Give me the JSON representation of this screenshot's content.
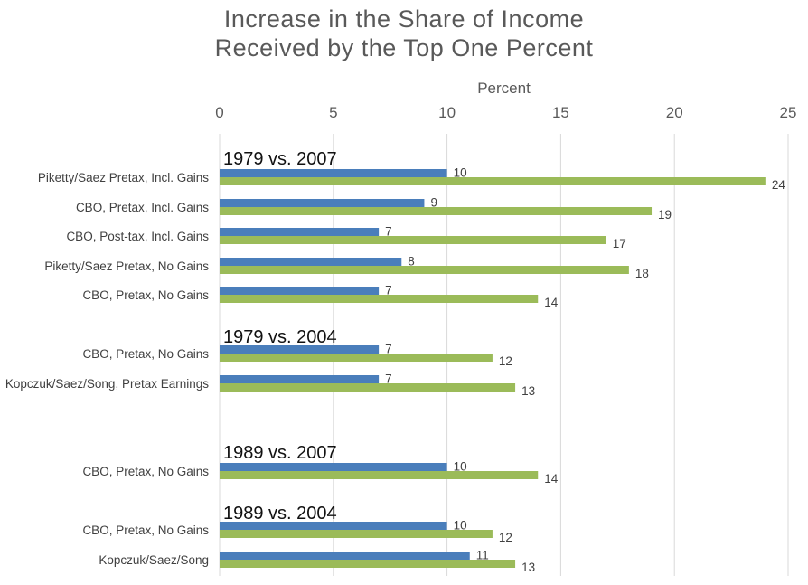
{
  "chart_data": {
    "type": "bar",
    "orientation": "horizontal",
    "title_lines": [
      "Increase in the Share of Income",
      "Received by the Top One Percent"
    ],
    "xlabel": "Percent",
    "xlim": [
      0,
      25
    ],
    "xticks": [
      0,
      5,
      10,
      15,
      20,
      25
    ],
    "x_axis_position": "top",
    "grid": true,
    "colors": {
      "series1": "#4a7ebb",
      "series2": "#9bbb59"
    },
    "groups": [
      {
        "label": "1979 vs. 2007",
        "rows": [
          {
            "category": "Piketty/Saez Pretax, Incl. Gains",
            "values": [
              10,
              24
            ]
          },
          {
            "category": "CBO, Pretax, Incl. Gains",
            "values": [
              9,
              19
            ]
          },
          {
            "category": "CBO, Post-tax, Incl. Gains",
            "values": [
              7,
              17
            ]
          },
          {
            "category": "Piketty/Saez Pretax, No Gains",
            "values": [
              8,
              18
            ]
          },
          {
            "category": "CBO, Pretax, No Gains",
            "values": [
              7,
              14
            ]
          }
        ]
      },
      {
        "label": "1979 vs. 2004",
        "rows": [
          {
            "category": "CBO, Pretax, No Gains",
            "values": [
              7,
              12
            ]
          },
          {
            "category": "Kopczuk/Saez/Song, Pretax Earnings",
            "values": [
              7,
              13
            ]
          }
        ]
      },
      {
        "label": "1989 vs. 2007",
        "rows": [
          {
            "category": "CBO, Pretax, No Gains",
            "values": [
              10,
              14
            ]
          }
        ]
      },
      {
        "label": "1989 vs. 2004",
        "rows": [
          {
            "category": "CBO, Pretax, No Gains",
            "values": [
              10,
              12
            ]
          },
          {
            "category": "Kopczuk/Saez/Song",
            "values": [
              11,
              13
            ]
          }
        ]
      }
    ]
  }
}
